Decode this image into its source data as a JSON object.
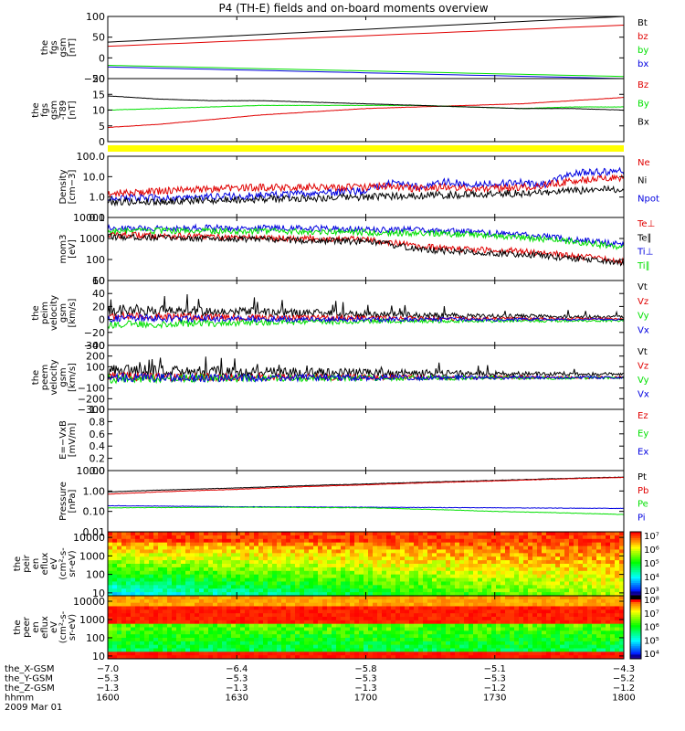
{
  "title": "P4 (TH-E) fields and on-board moments overview",
  "colors": {
    "black": "#000000",
    "red": "#e00000",
    "green": "#00e000",
    "blue": "#0000e0",
    "yellow": "#ffff00"
  },
  "chart_data": [
    {
      "type": "line",
      "id": "fgs",
      "ylabel": [
        "the",
        "fgs",
        "gsm",
        "[nT]"
      ],
      "ylim": [
        -50,
        100
      ],
      "ylog": false,
      "yticks": [
        {
          "v": 100,
          "t": "100"
        },
        {
          "v": 50,
          "t": "50"
        },
        {
          "v": 0,
          "t": "0"
        },
        {
          "v": -50,
          "t": "−50"
        }
      ],
      "legend": [
        {
          "t": "Bt",
          "c": "black"
        },
        {
          "t": "bz",
          "c": "red"
        },
        {
          "t": "by",
          "c": "green"
        },
        {
          "t": "bx",
          "c": "blue"
        }
      ],
      "series": [
        {
          "name": "Bt",
          "color": "black",
          "x": [
            0,
            1
          ],
          "y": [
            38,
            100
          ]
        },
        {
          "name": "bz",
          "color": "red",
          "x": [
            0,
            1
          ],
          "y": [
            28,
            79
          ]
        },
        {
          "name": "by",
          "color": "green",
          "x": [
            0,
            1
          ],
          "y": [
            -18,
            -45
          ]
        },
        {
          "name": "bx",
          "color": "blue",
          "x": [
            0,
            1
          ],
          "y": [
            -22,
            -50
          ]
        }
      ]
    },
    {
      "type": "line",
      "id": "fgs_t89",
      "ylabel": [
        "the",
        "fgs",
        "gsm",
        "-T89",
        "[nT]"
      ],
      "ylim": [
        0,
        20
      ],
      "ylog": false,
      "yticks": [
        {
          "v": 20,
          "t": "20"
        },
        {
          "v": 15,
          "t": "15"
        },
        {
          "v": 10,
          "t": "10"
        },
        {
          "v": 5,
          "t": "5"
        },
        {
          "v": 0,
          "t": "0"
        }
      ],
      "legend": [
        {
          "t": "Bz",
          "c": "red"
        },
        {
          "t": "By",
          "c": "green"
        },
        {
          "t": "Bx",
          "c": "black"
        }
      ],
      "series": [
        {
          "name": "Bz",
          "color": "red",
          "x": [
            0,
            0.1,
            0.2,
            0.3,
            0.4,
            0.5,
            0.6,
            0.7,
            0.8,
            0.9,
            1
          ],
          "y": [
            4.5,
            5.5,
            7,
            8.5,
            9.5,
            10.5,
            11,
            11.5,
            12,
            13,
            14
          ]
        },
        {
          "name": "By",
          "color": "green",
          "x": [
            0,
            0.1,
            0.2,
            0.3,
            0.4,
            0.5,
            0.6,
            0.7,
            0.8,
            0.9,
            1
          ],
          "y": [
            10,
            10.5,
            11,
            11.5,
            11.5,
            11.5,
            11.5,
            11,
            10.5,
            11,
            11
          ]
        },
        {
          "name": "Bx",
          "color": "black",
          "x": [
            0,
            0.1,
            0.2,
            0.3,
            0.4,
            0.5,
            0.6,
            0.7,
            0.8,
            0.9,
            1
          ],
          "y": [
            14.5,
            13.5,
            13,
            13,
            12.5,
            12,
            11.5,
            11,
            10.5,
            10.5,
            10
          ]
        }
      ]
    },
    {
      "type": "line",
      "id": "density",
      "ylabel": [
        "Density",
        "[cm−3]"
      ],
      "ylim": [
        0.1,
        100
      ],
      "ylog": true,
      "yticks": [
        {
          "v": 100,
          "t": "100.0"
        },
        {
          "v": 10,
          "t": "10.0"
        },
        {
          "v": 1,
          "t": "1.0"
        },
        {
          "v": 0.1,
          "t": "0.1"
        }
      ],
      "legend": [
        {
          "t": "Ne",
          "c": "red"
        },
        {
          "t": "Ni",
          "c": "black"
        },
        {
          "t": "Npot",
          "c": "blue"
        }
      ],
      "series": [
        {
          "name": "Npot",
          "color": "blue",
          "x": [
            0,
            0.1,
            0.2,
            0.3,
            0.4,
            0.5,
            0.55,
            0.6,
            0.65,
            0.7,
            0.8,
            0.85,
            0.9,
            1
          ],
          "y": [
            0.9,
            0.9,
            1.0,
            1.2,
            1.5,
            2.0,
            5,
            3,
            6,
            4,
            5,
            4,
            15,
            18
          ]
        },
        {
          "name": "Ne",
          "color": "red",
          "x": [
            0,
            0.1,
            0.2,
            0.3,
            0.4,
            0.5,
            0.55,
            0.6,
            0.65,
            0.7,
            0.8,
            0.85,
            0.9,
            1
          ],
          "y": [
            1.5,
            2,
            2.5,
            3,
            3,
            3,
            3.5,
            2.5,
            3,
            2.5,
            3,
            4,
            6,
            9
          ]
        },
        {
          "name": "Ni",
          "color": "black",
          "x": [
            0,
            0.1,
            0.2,
            0.3,
            0.4,
            0.5,
            0.6,
            0.7,
            0.8,
            0.9,
            1
          ],
          "y": [
            0.6,
            0.6,
            0.7,
            0.8,
            0.9,
            1.0,
            1.2,
            1.3,
            1.5,
            2,
            2.5
          ]
        }
      ]
    },
    {
      "type": "line",
      "id": "temps",
      "ylabel": [
        "mom3",
        "[eV]"
      ],
      "ylim": [
        10,
        10000
      ],
      "ylog": true,
      "yticks": [
        {
          "v": 10000,
          "t": "10000"
        },
        {
          "v": 1000,
          "t": "1000"
        },
        {
          "v": 100,
          "t": "100"
        },
        {
          "v": 10,
          "t": "10"
        }
      ],
      "legend": [
        {
          "t": "Te⊥",
          "c": "red"
        },
        {
          "t": "Te∥",
          "c": "black"
        },
        {
          "t": "Ti⊥",
          "c": "blue"
        },
        {
          "t": "Ti∥",
          "c": "green"
        }
      ],
      "series": [
        {
          "name": "Ti⊥",
          "color": "blue",
          "x": [
            0,
            0.2,
            0.4,
            0.6,
            0.7,
            0.8,
            0.9,
            1
          ],
          "y": [
            3000,
            3200,
            3000,
            2500,
            2000,
            1500,
            900,
            500
          ]
        },
        {
          "name": "Ti∥",
          "color": "green",
          "x": [
            0,
            0.2,
            0.4,
            0.6,
            0.7,
            0.8,
            0.9,
            1
          ],
          "y": [
            2200,
            2300,
            2100,
            1800,
            1500,
            1100,
            700,
            350
          ]
        },
        {
          "name": "Te⊥",
          "color": "red",
          "x": [
            0,
            0.2,
            0.4,
            0.5,
            0.6,
            0.7,
            0.8,
            0.9,
            1
          ],
          "y": [
            1500,
            1200,
            1000,
            900,
            400,
            300,
            250,
            150,
            80
          ]
        },
        {
          "name": "Te∥",
          "color": "black",
          "x": [
            0,
            0.2,
            0.4,
            0.5,
            0.6,
            0.7,
            0.8,
            0.9,
            1
          ],
          "y": [
            1200,
            1000,
            800,
            700,
            300,
            220,
            180,
            110,
            60
          ]
        }
      ]
    },
    {
      "type": "line",
      "id": "peim_vel",
      "ylabel": [
        "the",
        "peim",
        "velocity",
        "gsm",
        "[km/s]"
      ],
      "ylim": [
        -40,
        60
      ],
      "ylog": false,
      "yticks": [
        {
          "v": 60,
          "t": "60"
        },
        {
          "v": 40,
          "t": "40"
        },
        {
          "v": 20,
          "t": "20"
        },
        {
          "v": 0,
          "t": "0"
        },
        {
          "v": -20,
          "t": "−20"
        },
        {
          "v": -40,
          "t": "−40"
        }
      ],
      "legend": [
        {
          "t": "Vt",
          "c": "black"
        },
        {
          "t": "Vz",
          "c": "red"
        },
        {
          "t": "Vy",
          "c": "green"
        },
        {
          "t": "Vx",
          "c": "blue"
        }
      ],
      "series": [
        {
          "name": "Vt",
          "color": "black",
          "x": [
            0,
            0.25,
            0.5,
            0.75,
            1
          ],
          "y": [
            15,
            12,
            8,
            5,
            4
          ]
        },
        {
          "name": "Vz",
          "color": "red",
          "x": [
            0,
            0.25,
            0.5,
            0.75,
            1
          ],
          "y": [
            5,
            3,
            2,
            1,
            1
          ]
        },
        {
          "name": "Vy",
          "color": "green",
          "x": [
            0,
            0.25,
            0.5,
            0.75,
            1
          ],
          "y": [
            -8,
            -5,
            -3,
            -2,
            -2
          ]
        },
        {
          "name": "Vx",
          "color": "blue",
          "x": [
            0,
            0.25,
            0.5,
            0.75,
            1
          ],
          "y": [
            2,
            1,
            0,
            0,
            0
          ]
        }
      ]
    },
    {
      "type": "line",
      "id": "peem_vel",
      "ylabel": [
        "the",
        "peem",
        "velocity",
        "gsm",
        "[km/s]"
      ],
      "ylim": [
        -300,
        300
      ],
      "ylog": false,
      "yticks": [
        {
          "v": 300,
          "t": "300"
        },
        {
          "v": 200,
          "t": "200"
        },
        {
          "v": 100,
          "t": "100"
        },
        {
          "v": 0,
          "t": "0"
        },
        {
          "v": -100,
          "t": "−100"
        },
        {
          "v": -200,
          "t": "−200"
        },
        {
          "v": -300,
          "t": "−300"
        }
      ],
      "legend": [
        {
          "t": "Vt",
          "c": "black"
        },
        {
          "t": "Vz",
          "c": "red"
        },
        {
          "t": "Vy",
          "c": "green"
        },
        {
          "t": "Vx",
          "c": "blue"
        }
      ],
      "series": [
        {
          "name": "Vt",
          "color": "black",
          "x": [
            0,
            0.25,
            0.5,
            0.75,
            1
          ],
          "y": [
            60,
            55,
            45,
            35,
            30
          ]
        },
        {
          "name": "Vz",
          "color": "red",
          "x": [
            0,
            0.25,
            0.5,
            0.75,
            1
          ],
          "y": [
            5,
            3,
            2,
            0,
            0
          ]
        },
        {
          "name": "Vy",
          "color": "green",
          "x": [
            0,
            0.25,
            0.5,
            0.75,
            1
          ],
          "y": [
            -10,
            -8,
            -5,
            -5,
            -5
          ]
        },
        {
          "name": "Vx",
          "color": "blue",
          "x": [
            0,
            0.25,
            0.5,
            0.75,
            1
          ],
          "y": [
            0,
            -5,
            -3,
            -2,
            -2
          ]
        }
      ]
    },
    {
      "type": "line",
      "id": "efield",
      "ylabel": [
        "E=−VxB",
        "[mV/m]"
      ],
      "ylim": [
        0,
        1
      ],
      "ylog": false,
      "yticks": [
        {
          "v": 1,
          "t": "1.0"
        },
        {
          "v": 0.8,
          "t": "0.8"
        },
        {
          "v": 0.6,
          "t": "0.6"
        },
        {
          "v": 0.4,
          "t": "0.4"
        },
        {
          "v": 0.2,
          "t": "0.2"
        },
        {
          "v": 0,
          "t": "0.0"
        }
      ],
      "legend": [
        {
          "t": "Ez",
          "c": "red"
        },
        {
          "t": "Ey",
          "c": "green"
        },
        {
          "t": "Ex",
          "c": "blue"
        }
      ],
      "series": []
    },
    {
      "type": "line",
      "id": "pressure",
      "ylabel": [
        "Pressure",
        "[nPa]"
      ],
      "ylim": [
        0.01,
        10
      ],
      "ylog": true,
      "yticks": [
        {
          "v": 10,
          "t": "10.00"
        },
        {
          "v": 1,
          "t": "1.00"
        },
        {
          "v": 0.1,
          "t": "0.10"
        },
        {
          "v": 0.01,
          "t": "0.01"
        }
      ],
      "legend": [
        {
          "t": "Pt",
          "c": "black"
        },
        {
          "t": "Pb",
          "c": "red"
        },
        {
          "t": "Pe",
          "c": "green"
        },
        {
          "t": "Pi",
          "c": "blue"
        }
      ],
      "series": [
        {
          "name": "Pt",
          "color": "black",
          "x": [
            0,
            0.25,
            0.5,
            0.75,
            1
          ],
          "y": [
            0.9,
            1.4,
            2.2,
            3.3,
            4.8
          ]
        },
        {
          "name": "Pb",
          "color": "red",
          "x": [
            0,
            0.25,
            0.5,
            0.75,
            1
          ],
          "y": [
            0.7,
            1.2,
            2.0,
            3.1,
            4.6
          ]
        },
        {
          "name": "Pi",
          "color": "blue",
          "x": [
            0,
            0.25,
            0.5,
            0.75,
            1
          ],
          "y": [
            0.19,
            0.17,
            0.16,
            0.15,
            0.14
          ]
        },
        {
          "name": "Pe",
          "color": "green",
          "x": [
            0,
            0.25,
            0.5,
            0.75,
            1
          ],
          "y": [
            0.15,
            0.16,
            0.15,
            0.1,
            0.07
          ]
        }
      ]
    },
    {
      "type": "heatmap",
      "id": "peir_flux",
      "ylabel": [
        "the",
        "peir",
        "en",
        "eflux",
        "eV",
        "(cm²-s-",
        "sr-eV)"
      ],
      "ylim": [
        7,
        20000
      ],
      "ylog": true,
      "yticks": [
        {
          "v": 10000,
          "t": "10000"
        },
        {
          "v": 1000,
          "t": "1000"
        },
        {
          "v": 100,
          "t": "100"
        },
        {
          "v": 10,
          "t": "10"
        }
      ],
      "colorbar": {
        "labels": [
          "10⁷",
          "10⁶",
          "10⁵",
          "10⁴",
          "10³"
        ],
        "range_exp": [
          3,
          7
        ]
      }
    },
    {
      "type": "heatmap",
      "id": "peer_flux",
      "ylabel": [
        "the",
        "peer",
        "en",
        "eflux",
        "eV",
        "(cm²-s-",
        "sr-eV)"
      ],
      "ylim": [
        7,
        20000
      ],
      "ylog": true,
      "yticks": [
        {
          "v": 10000,
          "t": "10000"
        },
        {
          "v": 1000,
          "t": "1000"
        },
        {
          "v": 100,
          "t": "100"
        },
        {
          "v": 10,
          "t": "10"
        }
      ],
      "colorbar": {
        "labels": [
          "10⁸",
          "10⁷",
          "10⁶",
          "10⁵",
          "10⁴"
        ],
        "range_exp": [
          4,
          8
        ]
      }
    }
  ],
  "x_axis": {
    "ticks": [
      "1600",
      "1630",
      "1700",
      "1730",
      "1800"
    ],
    "rows": [
      {
        "label": "the_X-GSM",
        "values": [
          "−7.0",
          "−6.4",
          "−5.8",
          "−5.1",
          "−4.3"
        ]
      },
      {
        "label": "the_Y-GSM",
        "values": [
          "−5.3",
          "−5.3",
          "−5.3",
          "−5.3",
          "−5.2"
        ]
      },
      {
        "label": "the_Z-GSM",
        "values": [
          "−1.3",
          "−1.3",
          "−1.3",
          "−1.2",
          "−1.2"
        ]
      },
      {
        "label": "hhmm",
        "values": [
          "1600",
          "1630",
          "1700",
          "1730",
          "1800"
        ]
      }
    ],
    "date": "2009 Mar 01"
  }
}
